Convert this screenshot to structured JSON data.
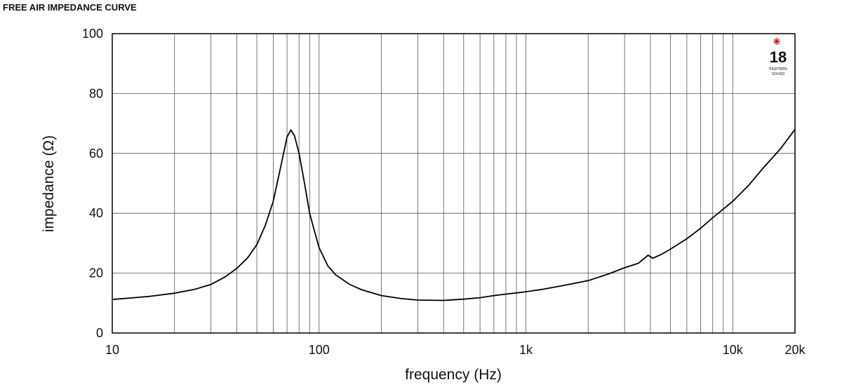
{
  "title": "FREE AIR IMPEDANCE CURVE",
  "logo": {
    "number": "18",
    "line1": "EIGHTEEN",
    "line2": "SOUND",
    "star_color": "#e0141e"
  },
  "chart_data": {
    "type": "line",
    "title": "FREE AIR IMPEDANCE CURVE",
    "xlabel": "frequency (Hz)",
    "ylabel": "impedance (Ω)",
    "xscale": "log",
    "xlim": [
      10,
      20000
    ],
    "ylim": [
      0,
      100
    ],
    "grid": true,
    "x_ticks": [
      {
        "value": 10,
        "label": "10"
      },
      {
        "value": 100,
        "label": "100"
      },
      {
        "value": 1000,
        "label": "1k"
      },
      {
        "value": 10000,
        "label": "10k"
      },
      {
        "value": 20000,
        "label": "20k"
      }
    ],
    "y_ticks": [
      {
        "value": 0,
        "label": "0"
      },
      {
        "value": 20,
        "label": "20"
      },
      {
        "value": 40,
        "label": "40"
      },
      {
        "value": 60,
        "label": "60"
      },
      {
        "value": 80,
        "label": "80"
      },
      {
        "value": 100,
        "label": "100"
      }
    ],
    "series": [
      {
        "color": "#000000",
        "points": [
          [
            10,
            11.2
          ],
          [
            15,
            12.2
          ],
          [
            20,
            13.3
          ],
          [
            25,
            14.6
          ],
          [
            30,
            16.2
          ],
          [
            35,
            18.7
          ],
          [
            40,
            21.6
          ],
          [
            45,
            25.0
          ],
          [
            50,
            29.5
          ],
          [
            55,
            36.0
          ],
          [
            60,
            44.0
          ],
          [
            65,
            55.0
          ],
          [
            70,
            65.5
          ],
          [
            73,
            67.8
          ],
          [
            76,
            66.0
          ],
          [
            80,
            60.0
          ],
          [
            85,
            50.0
          ],
          [
            90,
            40.0
          ],
          [
            95,
            34.0
          ],
          [
            100,
            28.5
          ],
          [
            110,
            22.5
          ],
          [
            120,
            19.5
          ],
          [
            140,
            16.3
          ],
          [
            160,
            14.5
          ],
          [
            200,
            12.5
          ],
          [
            250,
            11.5
          ],
          [
            300,
            11.0
          ],
          [
            400,
            10.9
          ],
          [
            500,
            11.3
          ],
          [
            600,
            11.8
          ],
          [
            700,
            12.5
          ],
          [
            800,
            13.0
          ],
          [
            900,
            13.4
          ],
          [
            1000,
            13.8
          ],
          [
            1200,
            14.6
          ],
          [
            1500,
            15.8
          ],
          [
            2000,
            17.5
          ],
          [
            2500,
            19.7
          ],
          [
            3000,
            21.8
          ],
          [
            3500,
            23.3
          ],
          [
            3900,
            26.0
          ],
          [
            4100,
            25.0
          ],
          [
            4500,
            26.2
          ],
          [
            5000,
            28.0
          ],
          [
            6000,
            31.5
          ],
          [
            7000,
            35.0
          ],
          [
            8000,
            38.5
          ],
          [
            10000,
            44.0
          ],
          [
            12000,
            49.5
          ],
          [
            14000,
            55.0
          ],
          [
            17000,
            61.5
          ],
          [
            20000,
            68.0
          ]
        ]
      }
    ]
  }
}
